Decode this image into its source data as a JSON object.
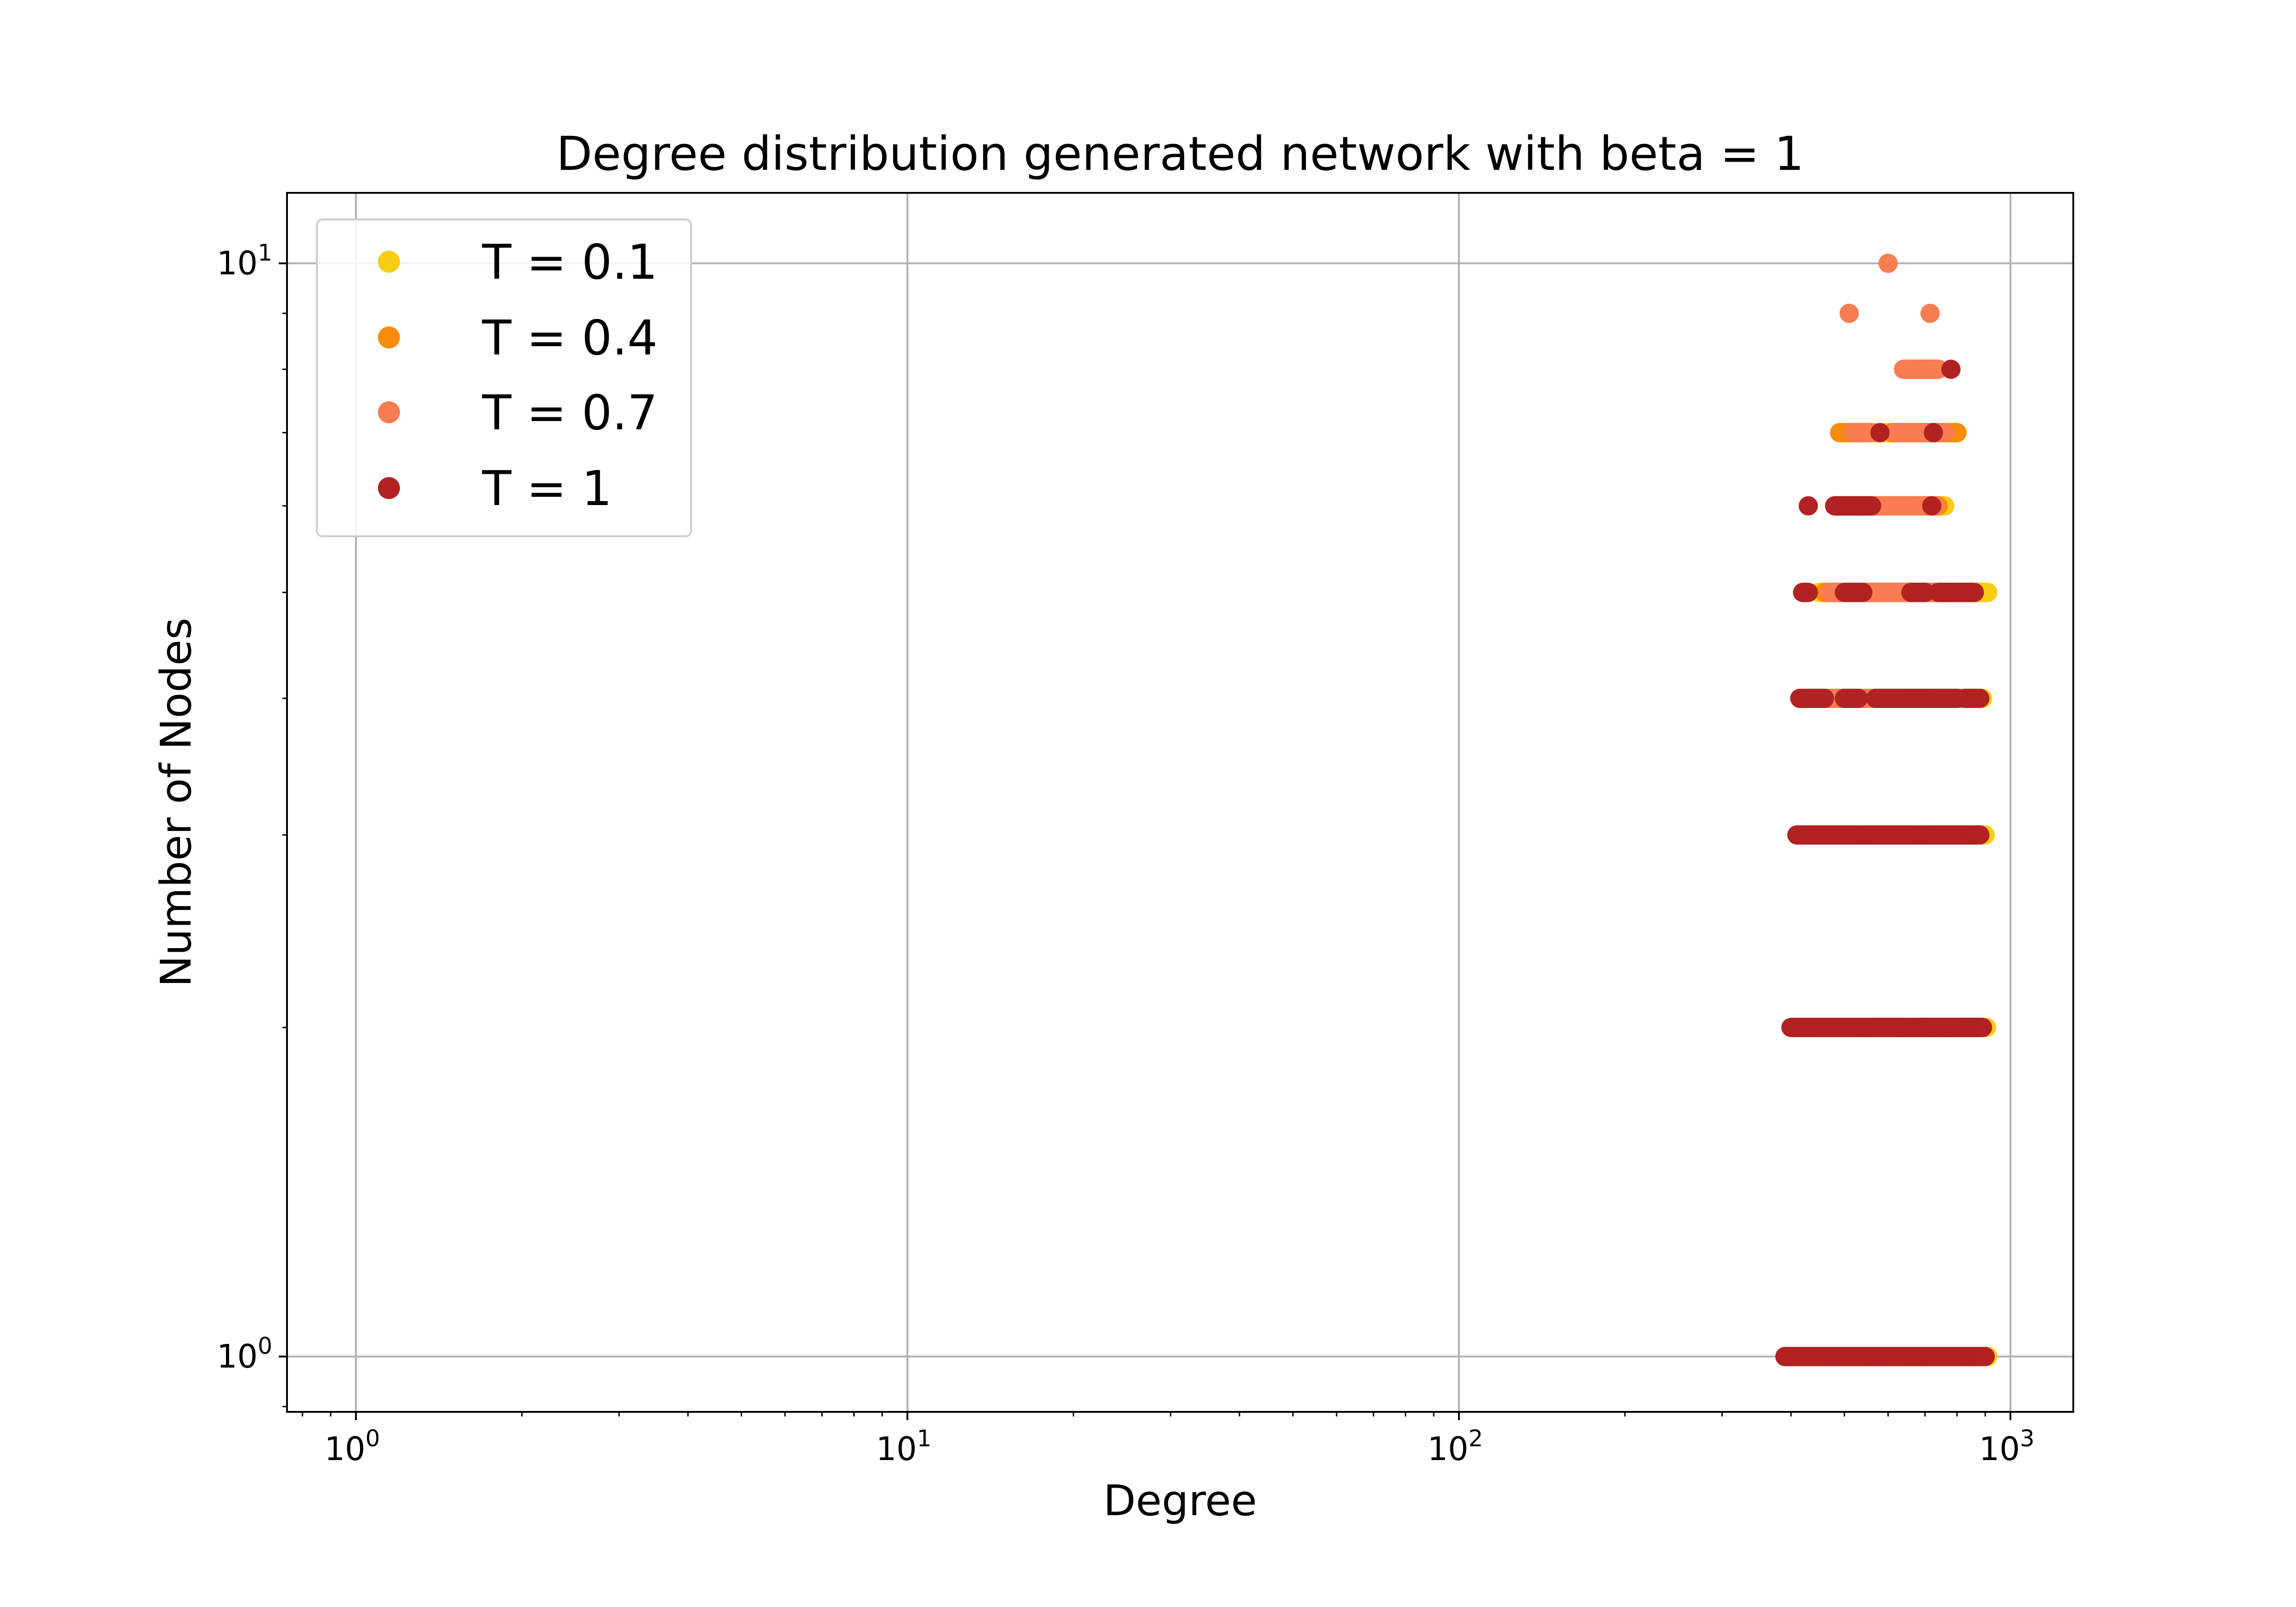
{
  "chart_data": {
    "type": "scatter",
    "title": "Degree distribution generated network with beta = 1",
    "xlabel": "Degree",
    "ylabel": "Number of Nodes",
    "xscale": "log",
    "yscale": "log",
    "xlim": [
      0.75,
      1300
    ],
    "ylim": [
      0.89,
      11.6
    ],
    "grid": true,
    "legend_position": "upper-left",
    "x_ticks": [
      {
        "value": 1,
        "base": "10",
        "exp": "0"
      },
      {
        "value": 10,
        "base": "10",
        "exp": "1"
      },
      {
        "value": 100,
        "base": "10",
        "exp": "2"
      },
      {
        "value": 1000,
        "base": "10",
        "exp": "3"
      }
    ],
    "y_ticks": [
      {
        "value": 1,
        "base": "10",
        "exp": "0"
      },
      {
        "value": 10,
        "base": "10",
        "exp": "1"
      }
    ],
    "series": [
      {
        "name": "T = 0.1",
        "color": "#f7ce13",
        "points": [
          {
            "y": 1,
            "x_ranges": [
              [
                400,
                910
              ]
            ]
          },
          {
            "y": 2,
            "x_ranges": [
              [
                405,
                905
              ]
            ]
          },
          {
            "y": 3,
            "x_ranges": [
              [
                420,
                900
              ]
            ]
          },
          {
            "y": 4,
            "x_ranges": [
              [
                430,
                890
              ]
            ]
          },
          {
            "y": 5,
            "x_ranges": [
              [
                450,
                910
              ]
            ]
          },
          {
            "y": 6,
            "x_ranges": [
              [
                500,
                760
              ]
            ]
          },
          {
            "y": 7,
            "x_ranges": [
              [
                550,
                690
              ]
            ]
          }
        ]
      },
      {
        "name": "T = 0.4",
        "color": "#f78c0d",
        "points": [
          {
            "y": 1,
            "x_ranges": [
              [
                405,
                890
              ]
            ]
          },
          {
            "y": 2,
            "x_ranges": [
              [
                410,
                880
              ]
            ]
          },
          {
            "y": 3,
            "x_ranges": [
              [
                425,
                880
              ]
            ]
          },
          {
            "y": 4,
            "x_ranges": [
              [
                440,
                870
              ]
            ]
          },
          {
            "y": 5,
            "x_ranges": [
              [
                460,
                860
              ]
            ]
          },
          {
            "y": 6,
            "x_ranges": [
              [
                510,
                740
              ]
            ]
          },
          {
            "y": 7,
            "x_ranges": [
              [
                490,
                540
              ],
              [
                610,
                800
              ]
            ]
          }
        ]
      },
      {
        "name": "T = 0.7",
        "color": "#f97d52",
        "points": [
          {
            "y": 1,
            "x_ranges": [
              [
                410,
                880
              ]
            ]
          },
          {
            "y": 2,
            "x_ranges": [
              [
                415,
                870
              ]
            ]
          },
          {
            "y": 3,
            "x_ranges": [
              [
                430,
                860
              ]
            ]
          },
          {
            "y": 4,
            "x_ranges": [
              [
                450,
                850
              ]
            ]
          },
          {
            "y": 5,
            "x_ranges": [
              [
                470,
                830
              ]
            ]
          },
          {
            "y": 6,
            "x_ranges": [
              [
                480,
                730
              ]
            ]
          },
          {
            "y": 7,
            "x_ranges": [
              [
                520,
                560
              ],
              [
                620,
                760
              ]
            ]
          },
          {
            "y": 8,
            "x_ranges": [
              [
                640,
                740
              ]
            ]
          },
          {
            "y": 9,
            "x_ranges": [
              [
                510,
                510
              ],
              [
                715,
                715
              ]
            ]
          },
          {
            "y": 10,
            "x_ranges": [
              [
                600,
                600
              ]
            ]
          }
        ]
      },
      {
        "name": "T = 1",
        "color": "#b22222",
        "points": [
          {
            "y": 1,
            "x_ranges": [
              [
                390,
                900
              ]
            ]
          },
          {
            "y": 2,
            "x_ranges": [
              [
                400,
                890
              ]
            ]
          },
          {
            "y": 3,
            "x_ranges": [
              [
                410,
                880
              ]
            ]
          },
          {
            "y": 4,
            "x_ranges": [
              [
                415,
                460
              ],
              [
                500,
                530
              ],
              [
                570,
                800
              ],
              [
                830,
                880
              ]
            ]
          },
          {
            "y": 5,
            "x_ranges": [
              [
                420,
                430
              ],
              [
                500,
                540
              ],
              [
                660,
                700
              ],
              [
                740,
                860
              ]
            ]
          },
          {
            "y": 6,
            "x_ranges": [
              [
                430,
                430
              ],
              [
                480,
                560
              ],
              [
                720,
                720
              ]
            ]
          },
          {
            "y": 7,
            "x_ranges": [
              [
                580,
                580
              ],
              [
                725,
                725
              ]
            ]
          },
          {
            "y": 8,
            "x_ranges": [
              [
                780,
                780
              ]
            ]
          }
        ]
      }
    ]
  }
}
